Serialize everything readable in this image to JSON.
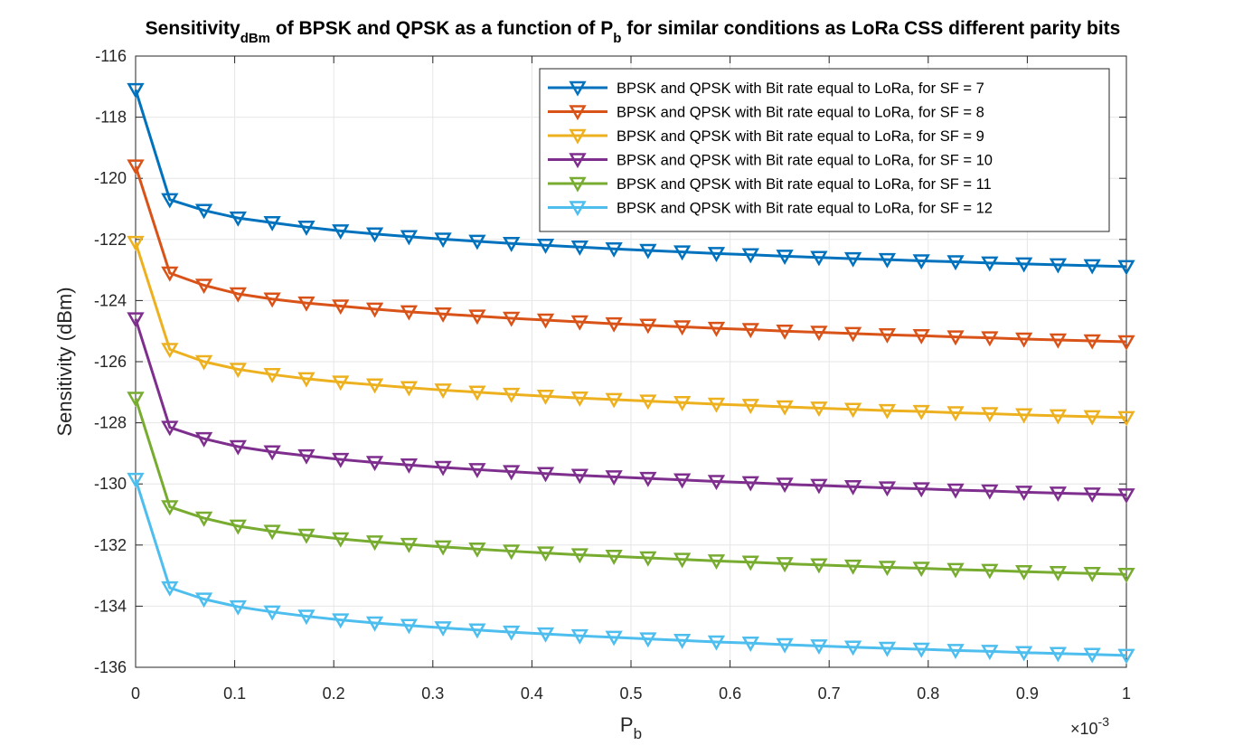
{
  "chart_data": {
    "type": "line",
    "title": {
      "part1": "Sensitivity",
      "sub1": "dBm",
      "part2": " of BPSK and QPSK as a function of P",
      "sub2": "b",
      "part3": " for similar conditions as LoRa CSS different parity bits"
    },
    "xlabel": {
      "main": "P",
      "sub": "b"
    },
    "ylabel": "Sensitivity (dBm)",
    "x_multiplier": {
      "base": "×10",
      "exponent": "-3"
    },
    "xlim": [
      0,
      1
    ],
    "ylim": [
      -136,
      -116
    ],
    "xticks": [
      0,
      0.1,
      0.2,
      0.3,
      0.4,
      0.5,
      0.6,
      0.7,
      0.8,
      0.9,
      1
    ],
    "xtick_labels": [
      "0",
      "0.1",
      "0.2",
      "0.3",
      "0.4",
      "0.5",
      "0.6",
      "0.7",
      "0.8",
      "0.9",
      "1"
    ],
    "yticks": [
      -136,
      -134,
      -132,
      -130,
      -128,
      -126,
      -124,
      -122,
      -120,
      -118,
      -116
    ],
    "ytick_labels": [
      "-136",
      "-134",
      "-132",
      "-130",
      "-128",
      "-126",
      "-124",
      "-122",
      "-120",
      "-118",
      "-116"
    ],
    "grid": true,
    "legend_position": "top-right",
    "marker": "triangle-down",
    "x": [
      0,
      0.0345,
      0.069,
      0.1034,
      0.1379,
      0.1724,
      0.2069,
      0.2414,
      0.2759,
      0.3103,
      0.3448,
      0.3793,
      0.4138,
      0.4483,
      0.4828,
      0.5172,
      0.5517,
      0.5862,
      0.6207,
      0.6552,
      0.6897,
      0.7241,
      0.7586,
      0.7931,
      0.8276,
      0.8621,
      0.8966,
      0.931,
      0.9655,
      1.0
    ],
    "series": [
      {
        "name": "BPSK and QPSK with Bit rate equal to LoRa, for SF = 7",
        "color": "#0072BD",
        "values": [
          -117.1,
          -120.7,
          -121.05,
          -121.3,
          -121.45,
          -121.6,
          -121.72,
          -121.82,
          -121.91,
          -121.99,
          -122.06,
          -122.13,
          -122.19,
          -122.25,
          -122.31,
          -122.36,
          -122.41,
          -122.46,
          -122.5,
          -122.55,
          -122.59,
          -122.63,
          -122.66,
          -122.7,
          -122.73,
          -122.77,
          -122.8,
          -122.83,
          -122.86,
          -122.89
        ]
      },
      {
        "name": "BPSK and QPSK with Bit rate equal to LoRa, for SF = 8",
        "color": "#D95319",
        "values": [
          -119.6,
          -123.1,
          -123.5,
          -123.78,
          -123.95,
          -124.08,
          -124.18,
          -124.28,
          -124.37,
          -124.44,
          -124.51,
          -124.58,
          -124.64,
          -124.7,
          -124.76,
          -124.81,
          -124.86,
          -124.91,
          -124.95,
          -125.0,
          -125.04,
          -125.08,
          -125.12,
          -125.15,
          -125.19,
          -125.22,
          -125.26,
          -125.29,
          -125.32,
          -125.35
        ]
      },
      {
        "name": "BPSK and QPSK with Bit rate equal to LoRa, for SF = 9",
        "color": "#EDB120",
        "values": [
          -122.1,
          -125.6,
          -126.0,
          -126.25,
          -126.42,
          -126.56,
          -126.67,
          -126.76,
          -126.85,
          -126.93,
          -127.0,
          -127.07,
          -127.13,
          -127.19,
          -127.24,
          -127.29,
          -127.34,
          -127.39,
          -127.43,
          -127.48,
          -127.52,
          -127.56,
          -127.6,
          -127.63,
          -127.67,
          -127.7,
          -127.74,
          -127.77,
          -127.8,
          -127.83
        ]
      },
      {
        "name": "BPSK and QPSK with Bit rate equal to LoRa, for SF = 10",
        "color": "#7E2F8E",
        "values": [
          -124.6,
          -128.15,
          -128.52,
          -128.78,
          -128.95,
          -129.08,
          -129.2,
          -129.3,
          -129.38,
          -129.46,
          -129.53,
          -129.6,
          -129.66,
          -129.72,
          -129.77,
          -129.82,
          -129.87,
          -129.92,
          -129.96,
          -130.01,
          -130.05,
          -130.09,
          -130.13,
          -130.16,
          -130.2,
          -130.23,
          -130.27,
          -130.3,
          -130.33,
          -130.36
        ]
      },
      {
        "name": "BPSK and QPSK with Bit rate equal to LoRa, for SF = 11",
        "color": "#77AC30",
        "values": [
          -127.2,
          -130.75,
          -131.12,
          -131.38,
          -131.55,
          -131.68,
          -131.8,
          -131.9,
          -131.98,
          -132.06,
          -132.13,
          -132.2,
          -132.26,
          -132.32,
          -132.37,
          -132.42,
          -132.47,
          -132.52,
          -132.56,
          -132.61,
          -132.65,
          -132.69,
          -132.73,
          -132.76,
          -132.8,
          -132.83,
          -132.87,
          -132.9,
          -132.93,
          -132.96
        ]
      },
      {
        "name": "BPSK and QPSK with Bit rate equal to LoRa, for SF = 12",
        "color": "#4DBEEE",
        "values": [
          -129.85,
          -133.4,
          -133.77,
          -134.02,
          -134.19,
          -134.33,
          -134.45,
          -134.55,
          -134.63,
          -134.71,
          -134.78,
          -134.85,
          -134.91,
          -134.97,
          -135.02,
          -135.07,
          -135.12,
          -135.17,
          -135.21,
          -135.26,
          -135.3,
          -135.34,
          -135.38,
          -135.41,
          -135.45,
          -135.48,
          -135.52,
          -135.55,
          -135.58,
          -135.61
        ]
      }
    ]
  }
}
